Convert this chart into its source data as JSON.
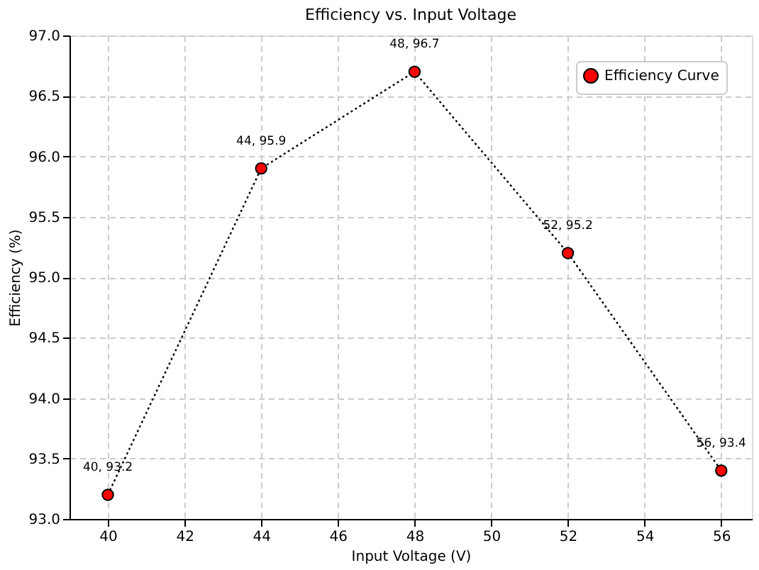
{
  "chart_data": {
    "type": "line",
    "title": "Efficiency vs. Input Voltage",
    "xlabel": "Input Voltage (V)",
    "ylabel": "Efficiency (%)",
    "x": [
      40,
      44,
      48,
      52,
      56
    ],
    "series": [
      {
        "name": "Efficiency Curve",
        "color": "#000000",
        "colors": [
          "#ff0000",
          "#ff0000",
          "#ff0000",
          "#ff0000",
          "#ff0000"
        ],
        "values": [
          93.2,
          95.9,
          96.7,
          95.2,
          93.4
        ]
      }
    ],
    "annotations": [
      {
        "text": "40, 93.2",
        "x": 40,
        "y": 93.2
      },
      {
        "text": "44, 95.9",
        "x": 44,
        "y": 95.9
      },
      {
        "text": "48, 96.7",
        "x": 48,
        "y": 96.7
      },
      {
        "text": "52, 95.2",
        "x": 52,
        "y": 95.2
      },
      {
        "text": "56, 93.4",
        "x": 56,
        "y": 93.4
      }
    ],
    "xlim": [
      39,
      56.8
    ],
    "xticks": [
      40,
      42,
      44,
      46,
      48,
      50,
      52,
      54,
      56
    ],
    "ylim": [
      93,
      97
    ],
    "yticks": [
      {
        "value": 93,
        "label": "93.0"
      },
      {
        "value": 93.5,
        "label": "93.5"
      },
      {
        "value": 94,
        "label": "94.0"
      },
      {
        "value": 94.5,
        "label": "94.5"
      },
      {
        "value": 95,
        "label": "95.0"
      },
      {
        "value": 95.5,
        "label": "95.5"
      },
      {
        "value": 96,
        "label": "96.0"
      },
      {
        "value": 96.5,
        "label": "96.5"
      },
      {
        "value": 97,
        "label": "97.0"
      }
    ],
    "grid": true,
    "legend": "top right",
    "marker": "circle",
    "line_style": "dotted"
  }
}
